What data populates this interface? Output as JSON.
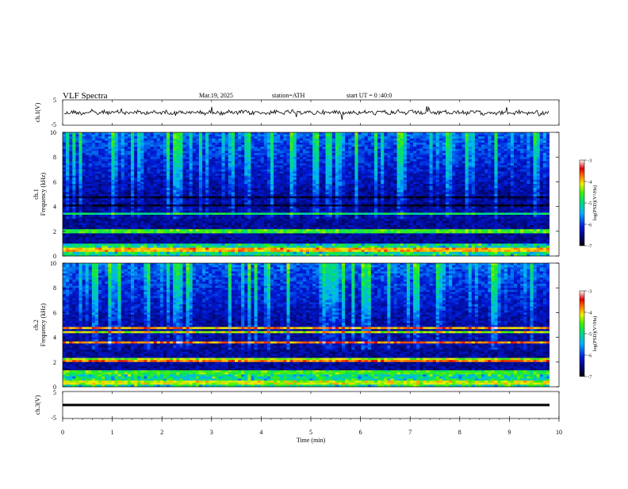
{
  "header": {
    "title": "VLF  Spectra",
    "date": "Mar.19, 2025",
    "station": "station=ATH",
    "start": "start  UT  =    0  :40:0"
  },
  "chart_data": [
    {
      "type": "line",
      "panel": "ch1-waveform",
      "ylabel": "ch.1(V)",
      "ylim": [
        -5,
        5
      ],
      "yticks": [
        "5",
        "-5"
      ],
      "xlim": [
        0,
        10
      ]
    },
    {
      "type": "heatmap",
      "panel": "ch1-spectrogram",
      "ylabel_channel": "ch.1",
      "ylabel": "Frequency  (kHz)",
      "ylim": [
        0,
        10
      ],
      "yticks": [
        "0",
        "2",
        "4",
        "6",
        "8",
        "10"
      ],
      "xlim": [
        0,
        10
      ],
      "colorbar": {
        "label": "log(PSD)(V²/Hz)",
        "ticks": [
          "-3",
          "-4",
          "-5",
          "-6",
          "-7"
        ],
        "range": [
          -7,
          -3
        ]
      }
    },
    {
      "type": "heatmap",
      "panel": "ch2-spectrogram",
      "ylabel_channel": "ch.2",
      "ylabel": "Frequency  (kHz)",
      "ylim": [
        0,
        10
      ],
      "yticks": [
        "0",
        "2",
        "4",
        "6",
        "8",
        "10"
      ],
      "xlim": [
        0,
        10
      ],
      "colorbar": {
        "label": "log(PSD)(V²/Hz)",
        "ticks": [
          "-3",
          "-4",
          "-5",
          "-6",
          "-7"
        ],
        "range": [
          -7,
          -3
        ]
      }
    },
    {
      "type": "line",
      "panel": "ch3-waveform",
      "ylabel": "ch.3(V)",
      "ylim": [
        -5,
        5
      ],
      "yticks": [
        "5",
        "-5"
      ],
      "xlim": [
        0,
        10
      ]
    }
  ],
  "xaxis": {
    "label": "Time  (min)",
    "ticks": [
      "0",
      "1",
      "2",
      "3",
      "4",
      "5",
      "6",
      "7",
      "8",
      "9",
      "10"
    ]
  }
}
